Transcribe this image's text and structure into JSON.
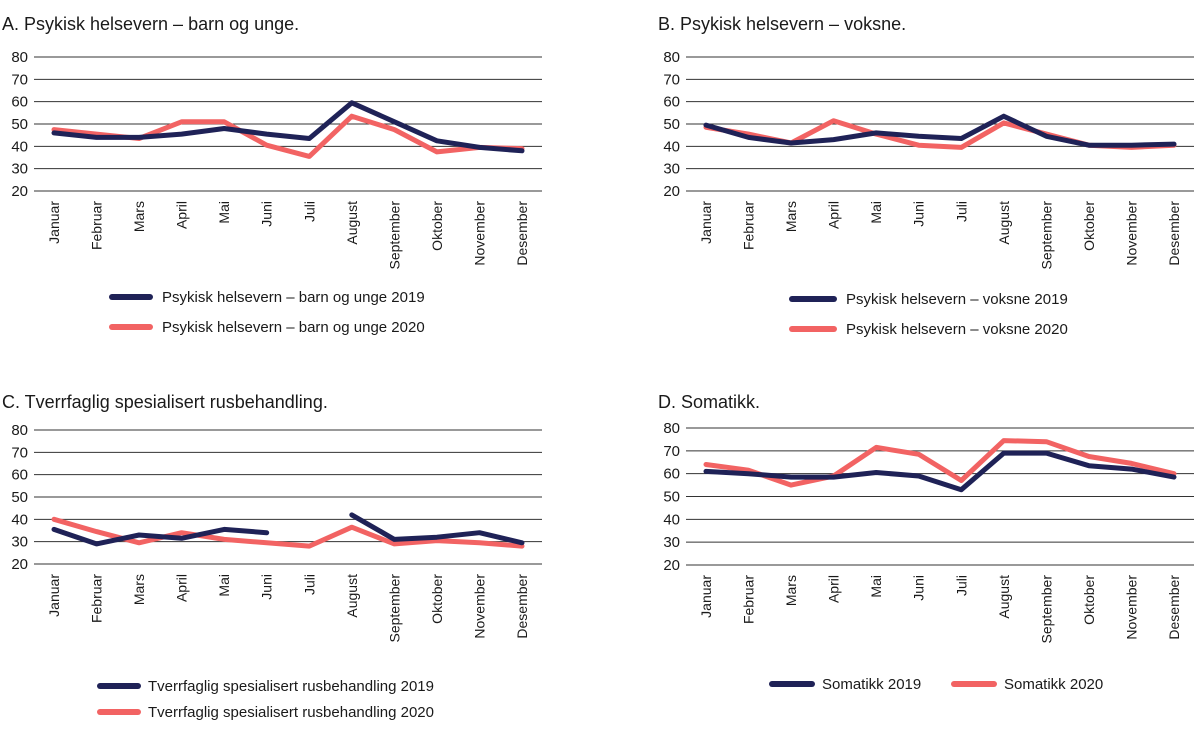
{
  "colors": {
    "y2019": "#1f2257",
    "y2020": "#f26363"
  },
  "chart_data": [
    {
      "id": "A",
      "type": "line",
      "title": "A. Psykisk helsevern – barn og unge.",
      "categories": [
        "Januar",
        "Februar",
        "Mars",
        "April",
        "Mai",
        "Juni",
        "Juli",
        "August",
        "September",
        "Oktober",
        "November",
        "Desember"
      ],
      "yticks": [
        80,
        70,
        60,
        50,
        40,
        30,
        20
      ],
      "ylim": [
        20,
        80
      ],
      "legend_position": "below",
      "series": [
        {
          "name": "Psykisk helsevern – barn og unge 2019",
          "values": [
            46,
            44,
            44,
            45.5,
            48,
            45.5,
            43.5,
            59.5,
            51,
            42.5,
            39.5,
            38
          ]
        },
        {
          "name": "Psykisk helsevern – barn og unge 2020",
          "values": [
            47.5,
            45.5,
            43.5,
            51,
            51,
            40.5,
            35.5,
            53.5,
            47.5,
            37.5,
            39.5,
            39
          ]
        }
      ]
    },
    {
      "id": "B",
      "type": "line",
      "title": "B. Psykisk helsevern – voksne.",
      "categories": [
        "Januar",
        "Februar",
        "Mars",
        "April",
        "Mai",
        "Juni",
        "Juli",
        "August",
        "September",
        "Oktober",
        "November",
        "Desember"
      ],
      "yticks": [
        80,
        70,
        60,
        50,
        40,
        30,
        20
      ],
      "ylim": [
        20,
        80
      ],
      "legend_position": "below",
      "series": [
        {
          "name": "Psykisk helsevern – voksne 2019",
          "values": [
            49.5,
            44,
            41.5,
            43,
            46,
            44.5,
            43.5,
            53.5,
            44.5,
            40.5,
            40.5,
            41
          ]
        },
        {
          "name": "Psykisk helsevern – voksne 2020",
          "values": [
            48.5,
            45.5,
            41.5,
            51.5,
            45.5,
            40.5,
            39.5,
            50.5,
            45.5,
            40.5,
            39.5,
            40.5
          ]
        }
      ]
    },
    {
      "id": "C",
      "type": "line",
      "title": "C. Tverrfaglig spesialisert rusbehandling.",
      "categories": [
        "Januar",
        "Februar",
        "Mars",
        "April",
        "Mai",
        "Juni",
        "Juli",
        "August",
        "September",
        "Oktober",
        "November",
        "Desember"
      ],
      "yticks": [
        80,
        70,
        60,
        50,
        40,
        30,
        20
      ],
      "ylim": [
        20,
        80
      ],
      "legend_position": "below",
      "series": [
        {
          "name": "Tverrfaglig spesialisert rusbehandling  2019",
          "values": [
            35.5,
            29,
            33,
            31.5,
            35.5,
            34,
            null,
            42,
            31,
            32,
            34,
            29.5
          ]
        },
        {
          "name": "Tverrfaglig spesialisert rusbehandling  2020",
          "values": [
            40,
            34.5,
            29.5,
            34,
            31,
            29.5,
            28,
            36.5,
            29,
            30.5,
            29.5,
            28
          ]
        }
      ]
    },
    {
      "id": "D",
      "type": "line",
      "title": "D. Somatikk.",
      "categories": [
        "Januar",
        "Februar",
        "Mars",
        "April",
        "Mai",
        "Juni",
        "Juli",
        "August",
        "September",
        "Oktober",
        "November",
        "Desember"
      ],
      "yticks": [
        80,
        70,
        60,
        50,
        40,
        30,
        20
      ],
      "ylim": [
        20,
        80
      ],
      "legend_position": "below",
      "series": [
        {
          "name": "Somatikk 2019",
          "values": [
            61,
            60,
            58.5,
            58.5,
            60.5,
            59,
            53,
            69,
            69,
            63.5,
            62,
            58.5
          ]
        },
        {
          "name": "Somatikk 2020",
          "values": [
            64,
            61.5,
            55,
            59,
            71.5,
            68.5,
            57,
            74.5,
            74,
            67.5,
            64.5,
            60
          ]
        }
      ]
    }
  ]
}
